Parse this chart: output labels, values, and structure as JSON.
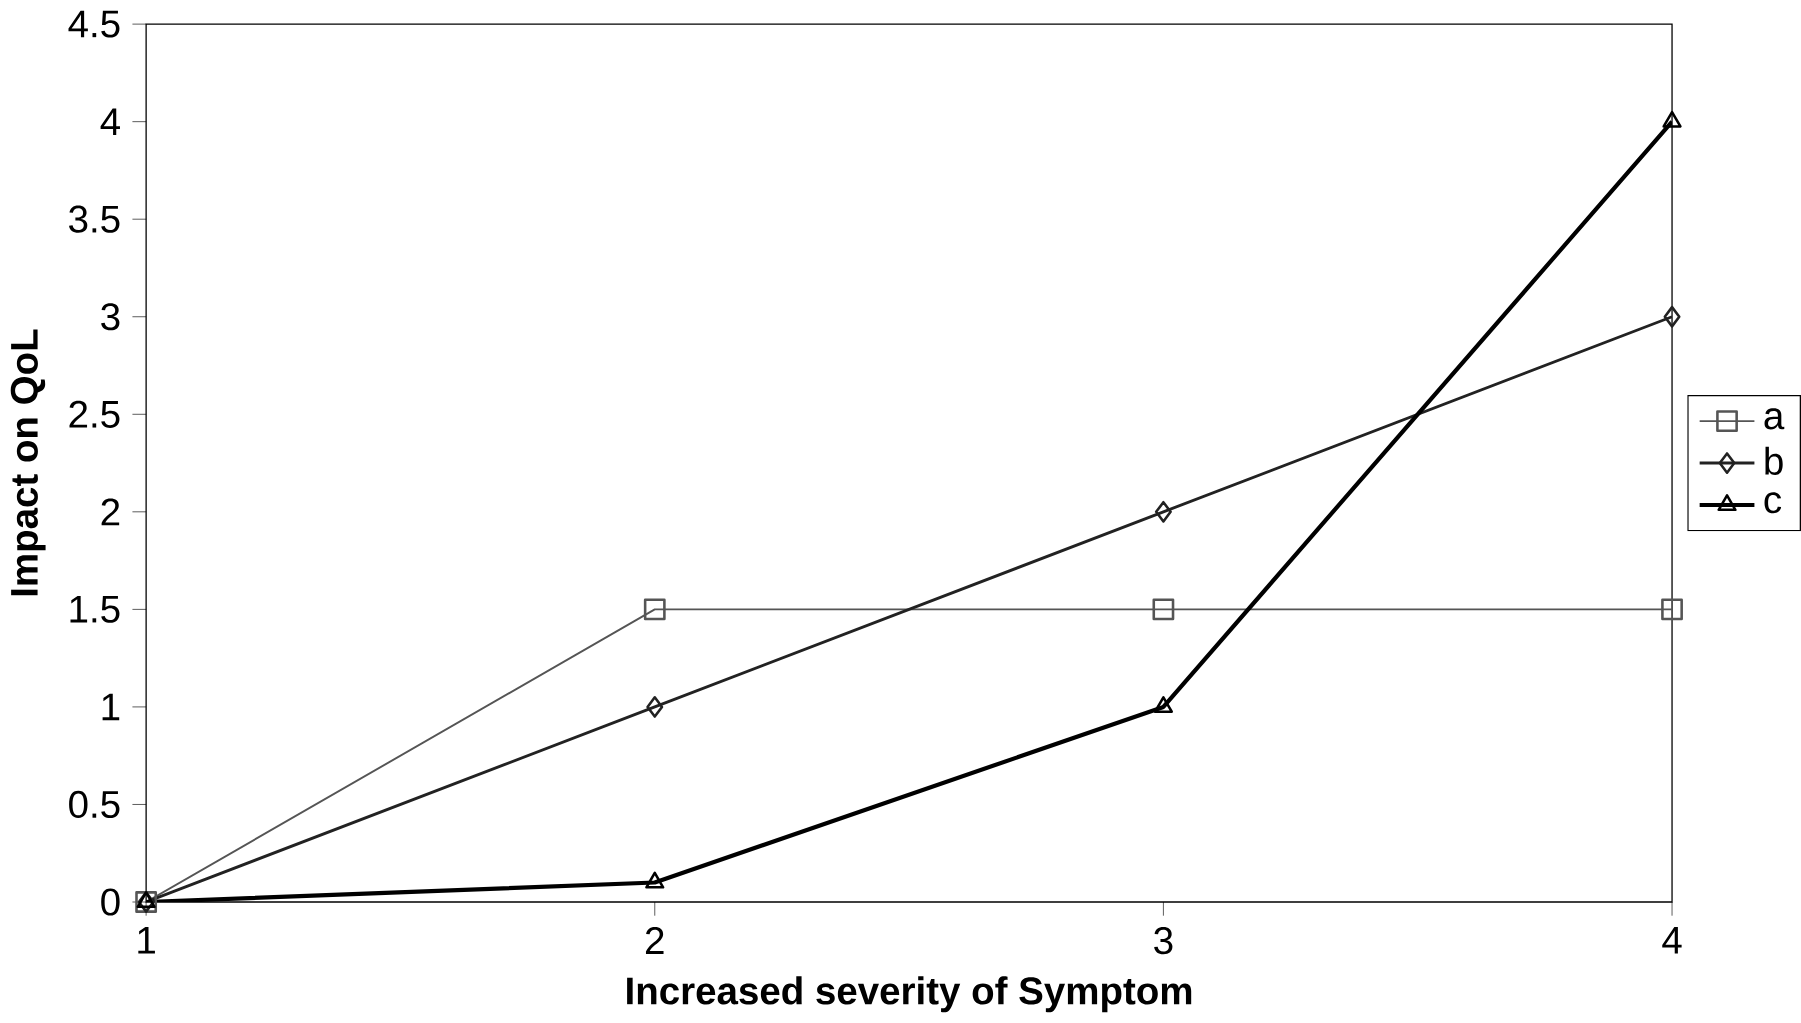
{
  "chart_data": {
    "type": "line",
    "xlabel": "Increased severity of Symptom",
    "ylabel": "Impact on QoL",
    "x": [
      1,
      2,
      3,
      4
    ],
    "xlim": [
      1,
      4
    ],
    "xticks": [
      1,
      2,
      3,
      4
    ],
    "ylim": [
      0,
      4.5
    ],
    "yticks": [
      0,
      0.5,
      1,
      1.5,
      2,
      2.5,
      3,
      3.5,
      4,
      4.5
    ],
    "grid": false,
    "legend": "right",
    "line_style": "solid",
    "series": [
      {
        "name": "a",
        "color": "#555555",
        "marker": "square",
        "values": [
          0,
          1.5,
          1.5,
          1.5
        ]
      },
      {
        "name": "b",
        "color": "#222222",
        "marker": "diamond",
        "values": [
          0,
          1.0,
          2.0,
          3.0
        ]
      },
      {
        "name": "c",
        "color": "#000000",
        "marker": "triangle",
        "values": [
          0,
          0.1,
          1.0,
          4.0
        ]
      }
    ]
  }
}
